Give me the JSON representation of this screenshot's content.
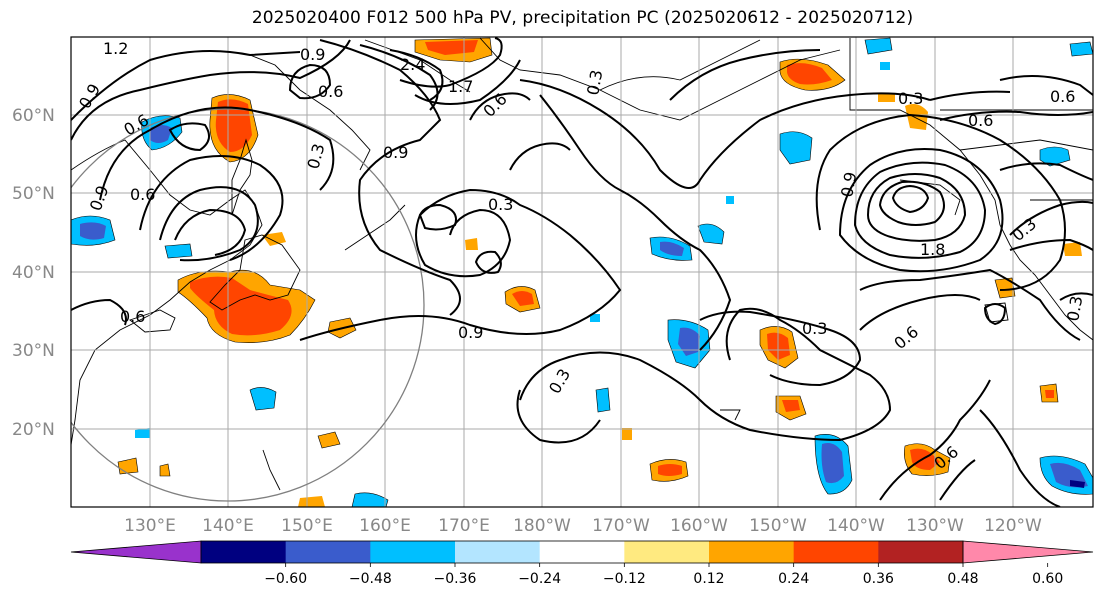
{
  "title": "2025020400 F012 500 hPa PV, precipitation PC (2025020612 - 2025020712)",
  "lat_labels": [
    "60°N",
    "50°N",
    "40°N",
    "30°N",
    "20°N"
  ],
  "lon_labels": [
    "130°E",
    "140°E",
    "150°E",
    "160°E",
    "170°E",
    "180°W",
    "170°W",
    "160°W",
    "150°W",
    "140°W",
    "130°W",
    "120°W"
  ],
  "contour_labels": [
    "1.2",
    "0.9",
    "2.4",
    "1.7",
    "0.6",
    "0.9",
    "0.6",
    "0.6",
    "0.3",
    "0.9",
    "0.9",
    "0.3",
    "0.9",
    "0.3",
    "0.3",
    "0.6",
    "0.6",
    "0.3",
    "0.6",
    "0.9",
    "1.8",
    "0.3",
    "0.3",
    "0.6",
    "0.6",
    "0.3",
    "0.6"
  ],
  "colorbar": {
    "ticks": [
      "−0.60",
      "−0.48",
      "−0.36",
      "−0.24",
      "−0.12",
      "0.12",
      "0.24",
      "0.36",
      "0.48",
      "0.60"
    ],
    "colors": [
      "#9932cc",
      "#000080",
      "#3a5ccc",
      "#00bfff",
      "#b3e5ff",
      "#ffffff",
      "#ffea80",
      "#ffa500",
      "#ff4500",
      "#b22222",
      "#ff88aa"
    ]
  },
  "chart_data": {
    "type": "map",
    "variable": "500 hPa PV, precipitation PC",
    "init": "2025020400",
    "forecast_hour": "F012",
    "valid_window": "2025020612 - 2025020712",
    "colorbar_levels": [
      -0.6,
      -0.48,
      -0.36,
      -0.24,
      -0.12,
      0.12,
      0.24,
      0.36,
      0.48,
      0.6
    ]
  }
}
